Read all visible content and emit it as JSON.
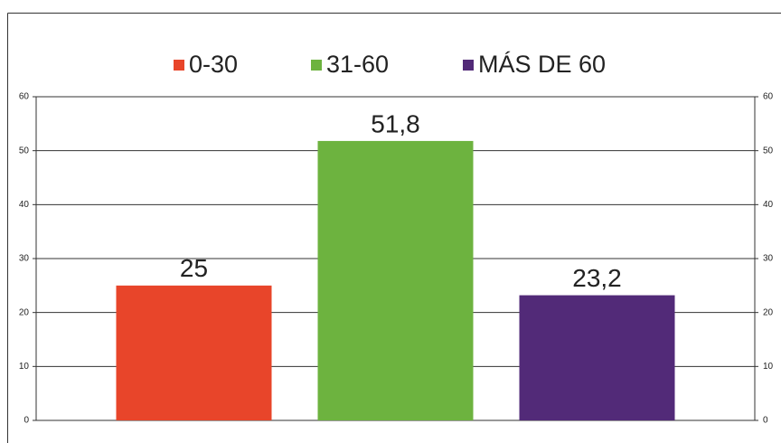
{
  "chart_data": {
    "type": "bar",
    "series": [
      {
        "name": "0-30",
        "color": "#e8452a",
        "values": [
          25
        ],
        "value_labels": [
          "25"
        ]
      },
      {
        "name": "31-60",
        "color": "#6db33f",
        "values": [
          51.8
        ],
        "value_labels": [
          "51,8"
        ]
      },
      {
        "name": "MÁS DE 60",
        "color": "#522a78",
        "values": [
          23.2
        ],
        "value_labels": [
          "23,2"
        ]
      }
    ],
    "ylim": [
      0,
      60
    ],
    "yticks": [
      0,
      10,
      20,
      30,
      40,
      50,
      60
    ],
    "y2lim": [
      0,
      60
    ],
    "y2ticks": [
      0,
      10,
      20,
      30,
      40,
      50,
      60
    ],
    "grid": true,
    "legend": "top"
  }
}
